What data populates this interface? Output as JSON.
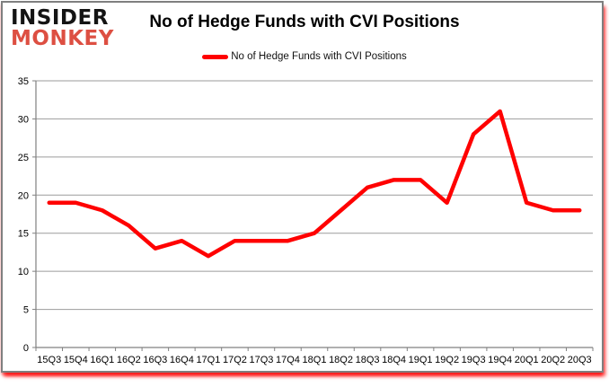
{
  "logo": {
    "line1": "INSIDER",
    "line2": "MONKEY"
  },
  "header": {
    "title": "No of Hedge Funds with CVI Positions"
  },
  "legend": {
    "label": "No of Hedge Funds with CVI Positions",
    "marker_color": "#FF0000"
  },
  "chart_data": {
    "type": "line",
    "title": "No of Hedge Funds with CVI Positions",
    "categories": [
      "15Q3",
      "15Q4",
      "16Q1",
      "16Q2",
      "16Q3",
      "16Q4",
      "17Q1",
      "17Q2",
      "17Q3",
      "17Q4",
      "18Q1",
      "18Q2",
      "18Q3",
      "18Q4",
      "19Q1",
      "19Q2",
      "19Q3",
      "19Q4",
      "20Q1",
      "20Q2",
      "20Q3"
    ],
    "series": [
      {
        "name": "No of Hedge Funds with CVI Positions",
        "color": "#FF0000",
        "values": [
          19,
          19,
          18,
          16,
          13,
          14,
          12,
          14,
          14,
          14,
          15,
          18,
          21,
          22,
          22,
          19,
          28,
          31,
          19,
          18,
          18
        ]
      }
    ],
    "xlabel": "",
    "ylabel": "",
    "ylim": [
      0,
      35
    ],
    "yticks": [
      0,
      5,
      10,
      15,
      20,
      25,
      30,
      35
    ],
    "grid": true,
    "legend_position": "top-center",
    "gridline_color": "#9b9b9b",
    "axis_color": "#808080",
    "line_width": 4.5
  }
}
